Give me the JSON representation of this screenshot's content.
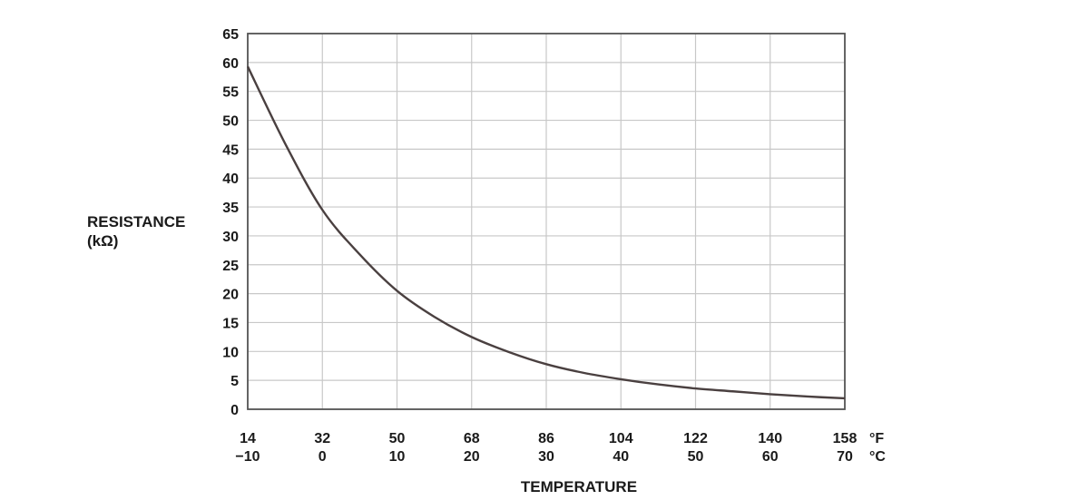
{
  "chart_data": {
    "type": "line",
    "xlabel": "TEMPERATURE",
    "ylabel": "RESISTANCE",
    "ylabel_unit": "(kΩ)",
    "x_unit_fahrenheit": "°F",
    "x_unit_celsius": "°C",
    "x_ticks_celsius": [
      "−10",
      "0",
      "10",
      "20",
      "30",
      "40",
      "50",
      "60",
      "70"
    ],
    "x_ticks_fahrenheit": [
      "14",
      "32",
      "50",
      "68",
      "86",
      "104",
      "122",
      "140",
      "158"
    ],
    "y_ticks": [
      "0",
      "5",
      "10",
      "15",
      "20",
      "25",
      "30",
      "35",
      "40",
      "45",
      "50",
      "55",
      "60",
      "65"
    ],
    "xlim": [
      -10,
      70
    ],
    "ylim": [
      0,
      65
    ],
    "grid": true,
    "colors": {
      "line": "#4a4040",
      "grid": "#c8c8c8",
      "frame": "#555555"
    },
    "series": [
      {
        "x": [
          -10,
          -5,
          0,
          5,
          10,
          15,
          20,
          25,
          30,
          35,
          40,
          45,
          50,
          55,
          60,
          65,
          70
        ],
        "y": [
          59.3,
          46.0,
          34.5,
          26.8,
          20.5,
          16.0,
          12.5,
          9.9,
          7.8,
          6.3,
          5.2,
          4.3,
          3.6,
          3.1,
          2.6,
          2.2,
          1.9
        ]
      }
    ]
  }
}
